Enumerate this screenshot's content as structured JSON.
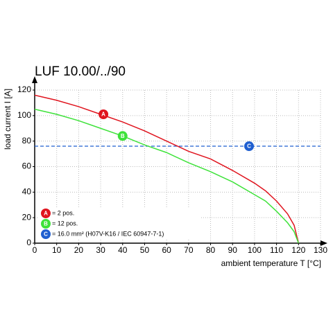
{
  "chart_data": {
    "type": "line",
    "title": "LUF 10.00/../90",
    "x_label": "ambient temperature T [°C]",
    "y_label": "load current I [A]",
    "x": [
      0,
      10,
      20,
      30,
      40,
      50,
      60,
      70,
      80,
      90,
      100,
      105,
      110,
      115,
      118,
      120
    ],
    "series": [
      {
        "name": "= 2 pos.",
        "marker": "A",
        "color": "#e0141e",
        "values": [
          116,
          112,
          107,
          101,
          95,
          88,
          80,
          72,
          66,
          57,
          47,
          41,
          33,
          23,
          14,
          0
        ]
      },
      {
        "name": "= 12 pos.",
        "marker": "B",
        "color": "#3ee23a",
        "values": [
          105,
          101,
          96,
          90,
          84,
          77,
          71,
          63,
          56,
          48,
          38,
          33,
          25,
          16,
          9,
          0
        ]
      }
    ],
    "reference_line": {
      "name": "= 16.0 mm² (H07V-K16 / IEC 60947-7-1)",
      "marker": "C",
      "color": "#1f5fd0",
      "value": 76
    },
    "xlim": [
      0,
      130
    ],
    "xticks": [
      0,
      10,
      20,
      30,
      40,
      50,
      60,
      70,
      80,
      90,
      100,
      110,
      120,
      130
    ],
    "ylim": [
      0,
      120
    ],
    "yticks": [
      0,
      20,
      40,
      60,
      80,
      100,
      120
    ],
    "grid": true
  }
}
